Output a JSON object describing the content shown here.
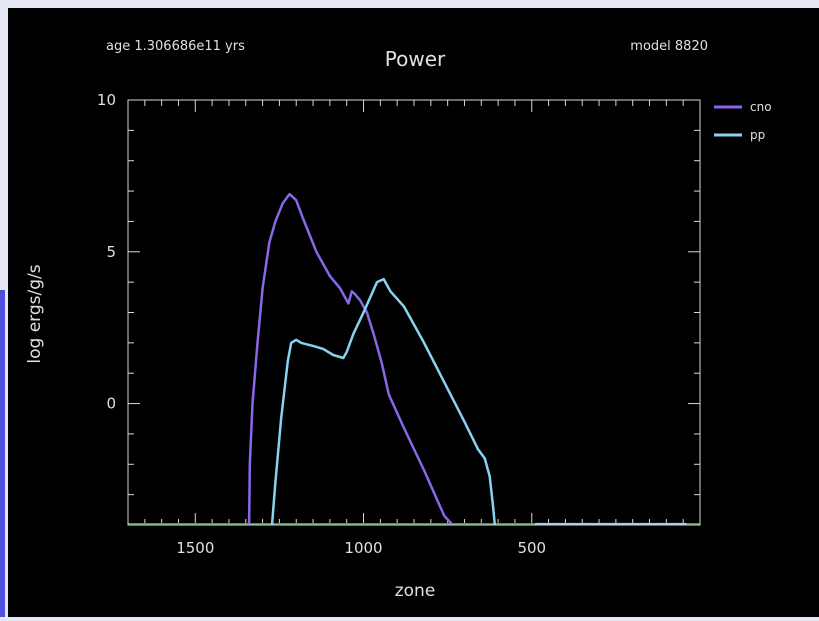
{
  "header": {
    "age_text": "age 1.306686e11 yrs",
    "model_text": "model 8820"
  },
  "chart_data": {
    "type": "line",
    "title": "Power",
    "xlabel": "zone",
    "ylabel": "log ergs/g/s",
    "xlim": [
      1700,
      0
    ],
    "ylim": [
      -4,
      10
    ],
    "x_ticks": [
      1500,
      1000,
      500
    ],
    "y_ticks": [
      10,
      5,
      0
    ],
    "grid": false,
    "legend_position": "top-right",
    "colors": {
      "background": "#000000",
      "axes": "#d8d8d8",
      "baseline": "#2fa84a"
    },
    "series": [
      {
        "name": "cno",
        "color": "#8a66e8",
        "x": [
          1340,
          1338,
          1330,
          1315,
          1300,
          1280,
          1262,
          1240,
          1220,
          1200,
          1180,
          1140,
          1100,
          1070,
          1045,
          1035,
          1025,
          1010,
          990,
          970,
          945,
          925,
          880,
          820,
          760,
          735
        ],
        "y": [
          -4,
          -2,
          0,
          2,
          3.8,
          5.3,
          6.0,
          6.6,
          6.9,
          6.7,
          6.1,
          5.0,
          4.2,
          3.8,
          3.3,
          3.7,
          3.6,
          3.4,
          3.0,
          2.3,
          1.3,
          0.3,
          -0.8,
          -2.2,
          -3.7,
          -4
        ]
      },
      {
        "name": "pp",
        "color": "#87d3f0",
        "x": [
          1272,
          1262,
          1245,
          1225,
          1215,
          1200,
          1185,
          1150,
          1120,
          1090,
          1060,
          1050,
          1030,
          1000,
          960,
          940,
          920,
          880,
          820,
          760,
          700,
          660,
          640,
          625,
          615,
          610
        ],
        "y": [
          -4,
          -2.6,
          -0.5,
          1.4,
          2.0,
          2.1,
          2.0,
          1.9,
          1.8,
          1.6,
          1.5,
          1.7,
          2.3,
          3.0,
          4.0,
          4.1,
          3.7,
          3.2,
          2.0,
          0.7,
          -0.6,
          -1.5,
          -1.8,
          -2.4,
          -3.4,
          -4
        ]
      },
      {
        "name": "",
        "color": "#87d3f0",
        "x": [
          490,
          40
        ],
        "y": [
          -3.97,
          -3.97
        ]
      }
    ]
  }
}
